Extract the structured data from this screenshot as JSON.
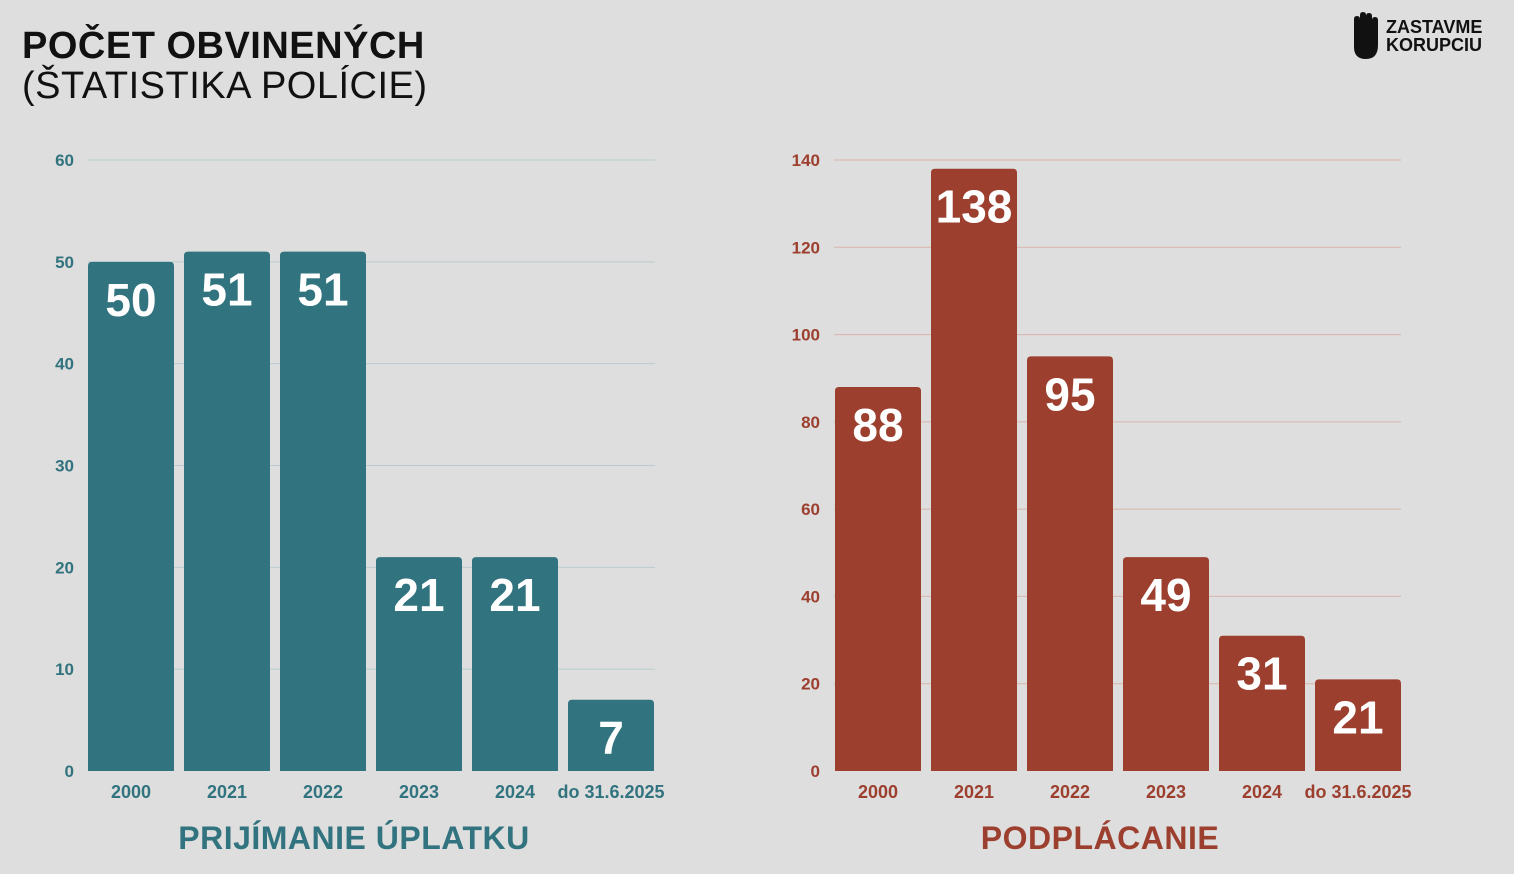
{
  "header": {
    "title_line1": "POČET OBVINENÝCH",
    "title_line2": "(ŠTATISTIKA POLÍCIE)"
  },
  "logo": {
    "line1": "ZASTAVME",
    "line2": "KORUPCIU",
    "icon": "raised-hand-icon"
  },
  "colors": {
    "teal": "#31737e",
    "red": "#9c3f2e",
    "background": "#dedede"
  },
  "chart_data": [
    {
      "type": "bar",
      "title": "PRIJÍMANIE ÚPLATKU",
      "categories": [
        "2000",
        "2021",
        "2022",
        "2023",
        "2024",
        "do 31.6.2025"
      ],
      "values": [
        50,
        51,
        51,
        21,
        21,
        7
      ],
      "ylim": [
        0,
        60
      ],
      "yticks": [
        0,
        10,
        20,
        30,
        40,
        50,
        60
      ],
      "xlabel": "",
      "ylabel": "",
      "grid": true,
      "color": "#31737e"
    },
    {
      "type": "bar",
      "title": "PODPLÁCANIE",
      "categories": [
        "2000",
        "2021",
        "2022",
        "2023",
        "2024",
        "do 31.6.2025"
      ],
      "values": [
        88,
        138,
        95,
        49,
        31,
        21
      ],
      "ylim": [
        0,
        140
      ],
      "yticks": [
        0,
        20,
        40,
        60,
        80,
        100,
        120,
        140
      ],
      "xlabel": "",
      "ylabel": "",
      "grid": true,
      "color": "#9c3f2e"
    }
  ]
}
